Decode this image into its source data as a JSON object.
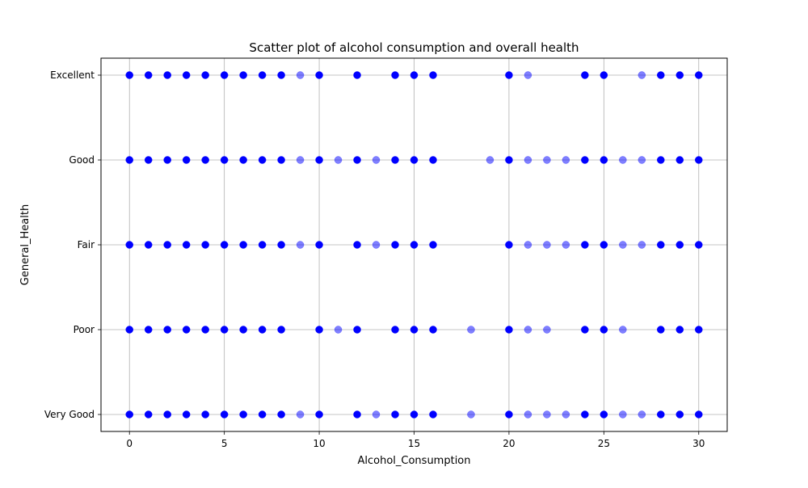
{
  "chart_data": {
    "type": "scatter",
    "title": "Scatter plot of alcohol consumption and overall health",
    "xlabel": "Alcohol_Consumption",
    "ylabel": "General_Health",
    "xlim": [
      -1.5,
      31.5
    ],
    "x_ticks": [
      0,
      5,
      10,
      15,
      20,
      25,
      30
    ],
    "y_categories": [
      "Very Good",
      "Poor",
      "Fair",
      "Good",
      "Excellent"
    ],
    "grid": true,
    "marker_color": "#0000ff",
    "marker_alpha": 0.5,
    "points_by_category": {
      "Excellent": [
        0,
        1,
        2,
        3,
        4,
        5,
        6,
        7,
        8,
        9,
        10,
        12,
        14,
        15,
        16,
        20,
        21,
        24,
        25,
        27,
        28,
        29,
        30
      ],
      "Good": [
        0,
        1,
        2,
        3,
        4,
        5,
        6,
        7,
        8,
        9,
        10,
        11,
        12,
        13,
        14,
        15,
        16,
        19,
        20,
        21,
        22,
        23,
        24,
        25,
        26,
        27,
        28,
        29,
        30
      ],
      "Fair": [
        0,
        1,
        2,
        3,
        4,
        5,
        6,
        7,
        8,
        9,
        10,
        12,
        13,
        14,
        15,
        16,
        20,
        21,
        22,
        23,
        24,
        25,
        26,
        27,
        28,
        29,
        30
      ],
      "Poor": [
        0,
        1,
        2,
        3,
        4,
        5,
        6,
        7,
        8,
        10,
        11,
        12,
        14,
        15,
        16,
        18,
        20,
        21,
        22,
        24,
        25,
        26,
        28,
        29,
        30
      ],
      "Very Good": [
        0,
        1,
        2,
        3,
        4,
        5,
        6,
        7,
        8,
        9,
        10,
        12,
        13,
        14,
        15,
        16,
        18,
        20,
        21,
        22,
        23,
        24,
        25,
        26,
        27,
        28,
        29,
        30
      ]
    },
    "dense_x": [
      0,
      1,
      2,
      3,
      4,
      5,
      6,
      7,
      8,
      10,
      12,
      14,
      15,
      16,
      20,
      24,
      25,
      28,
      29,
      30
    ]
  }
}
